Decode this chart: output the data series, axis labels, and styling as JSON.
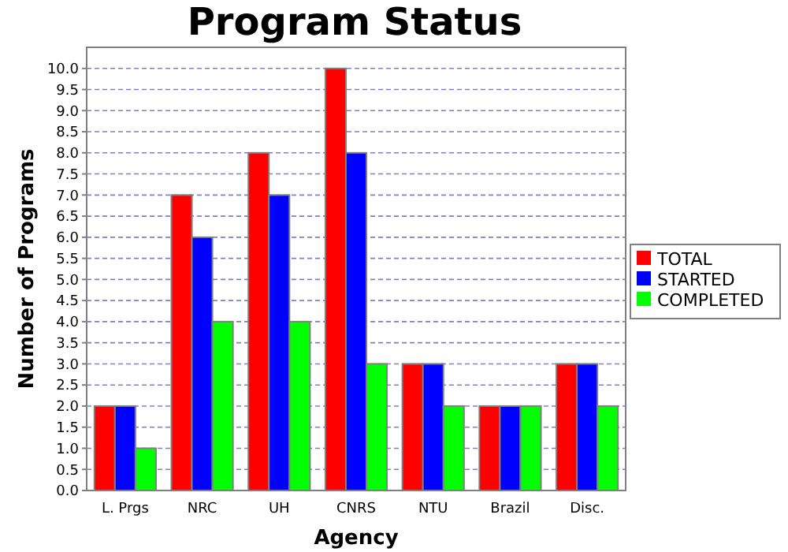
{
  "chart_data": {
    "type": "bar",
    "title": "Program Status",
    "xlabel": "Agency",
    "ylabel": "Number of Programs",
    "categories": [
      "L. Prgs",
      "NRC",
      "UH",
      "CNRS",
      "NTU",
      "Brazil",
      "Disc."
    ],
    "series": [
      {
        "name": "TOTAL",
        "color": "#ff0000",
        "values": [
          2,
          7,
          8,
          10,
          3,
          2,
          3
        ]
      },
      {
        "name": "STARTED",
        "color": "#0000ff",
        "values": [
          2,
          6,
          7,
          8,
          3,
          2,
          3
        ]
      },
      {
        "name": "COMPLETED",
        "color": "#00ff00",
        "values": [
          1,
          4,
          4,
          3,
          2,
          2,
          2
        ]
      }
    ],
    "ylim": [
      0,
      10.5
    ],
    "yticks": [
      {
        "value": 0,
        "label": "0.0"
      },
      {
        "value": 0.5,
        "label": "0.5"
      },
      {
        "value": 1,
        "label": "1.0"
      },
      {
        "value": 1.5,
        "label": "1.5"
      },
      {
        "value": 2,
        "label": "2.0"
      },
      {
        "value": 2.5,
        "label": "2.5"
      },
      {
        "value": 3,
        "label": "3.0"
      },
      {
        "value": 3.5,
        "label": "3.5"
      },
      {
        "value": 4,
        "label": "4.0"
      },
      {
        "value": 4.5,
        "label": "4.5"
      },
      {
        "value": 5,
        "label": "5.0"
      },
      {
        "value": 5.5,
        "label": "5.5"
      },
      {
        "value": 6,
        "label": "6.0"
      },
      {
        "value": 6.5,
        "label": "6.5"
      },
      {
        "value": 7,
        "label": "7.0"
      },
      {
        "value": 7.5,
        "label": "7.5"
      },
      {
        "value": 8,
        "label": "8.0"
      },
      {
        "value": 8.5,
        "label": "8.5"
      },
      {
        "value": 9,
        "label": "9.0"
      },
      {
        "value": 9.5,
        "label": "9.5"
      },
      {
        "value": 10,
        "label": "10.0"
      }
    ],
    "grid": "y",
    "legend": "right"
  }
}
